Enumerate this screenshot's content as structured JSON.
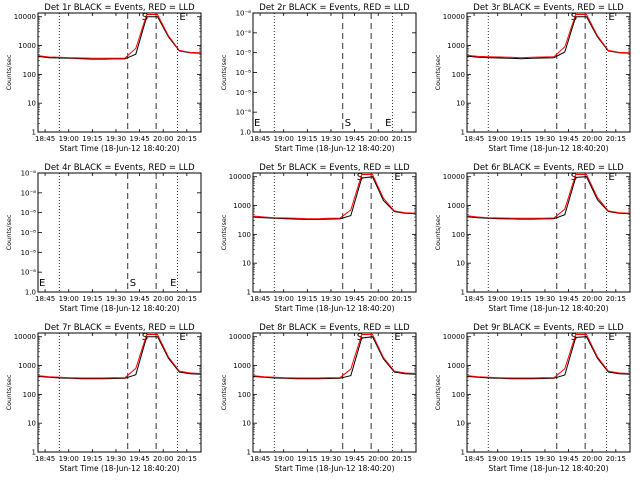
{
  "chart_data": [
    {
      "type": "line",
      "title": "Det 1r BLACK = Events, RED = LLD",
      "xlabel": "Start Time (18-Jun-12 18:40:20)",
      "ylabel": "Counts/sec",
      "scale": "log",
      "y_ticks": [
        "1",
        "10",
        "100",
        "1000",
        "10000"
      ],
      "x_ticks": [
        "18:45",
        "19:00",
        "19:15",
        "19:30",
        "19:45",
        "20:00",
        "20:15"
      ],
      "markers": [
        "S",
        "E"
      ],
      "has_data": true,
      "series": [
        {
          "name": "BLACK = Events",
          "color": "#000000",
          "x": [
            0,
            0.5,
            1,
            1.5,
            2,
            2.5,
            3,
            3.5,
            4,
            4.5,
            5,
            5.5,
            6,
            6.5,
            7,
            7.5
          ],
          "y": [
            420,
            380,
            370,
            360,
            350,
            340,
            340,
            345,
            345,
            500,
            10000,
            10000,
            2000,
            650,
            560,
            540
          ]
        },
        {
          "name": "RED = LLD",
          "color": "#ff0000",
          "x": [
            0,
            0.5,
            1,
            1.5,
            2,
            2.5,
            3,
            3.5,
            4,
            4.5,
            5,
            5.5,
            6,
            6.5,
            7,
            7.5
          ],
          "y": [
            450,
            400,
            390,
            380,
            370,
            360,
            360,
            365,
            365,
            800,
            12000,
            12000,
            2200,
            680,
            580,
            560
          ]
        }
      ]
    },
    {
      "type": "line",
      "title": "Det 2r BLACK = Events, RED = LLD",
      "xlabel": "Start Time (18-Jun-12 18:40:20)",
      "ylabel": "Counts/sec",
      "scale": "exp",
      "y_ticks": [
        "1.0",
        "10⁻⁶",
        "10⁻⁸",
        "10⁻⁸",
        "10⁻⁸",
        "10⁻⁸",
        "10⁻⁸"
      ],
      "x_ticks": [
        "18:45",
        "19:00",
        "19:15",
        "19:30",
        "19:45",
        "20:00",
        "20:15"
      ],
      "markers": [
        "E",
        "S",
        "E"
      ],
      "has_data": false,
      "series": []
    },
    {
      "type": "line",
      "title": "Det 3r BLACK = Events, RED = LLD",
      "xlabel": "Start Time (18-Jun-12 18:40:20)",
      "ylabel": "Counts/sec",
      "scale": "log",
      "y_ticks": [
        "1",
        "10",
        "100",
        "1000",
        "10000"
      ],
      "x_ticks": [
        "18:45",
        "19:00",
        "19:15",
        "19:30",
        "19:45",
        "20:00",
        "20:15"
      ],
      "markers": [
        "S",
        "E"
      ],
      "has_data": true,
      "series": [
        {
          "name": "BLACK = Events",
          "color": "#000000",
          "x": [
            0,
            0.5,
            1,
            1.5,
            2,
            2.5,
            3,
            3.5,
            4,
            4.5,
            5,
            5.5,
            6,
            6.5,
            7,
            7.5
          ],
          "y": [
            430,
            390,
            380,
            370,
            360,
            350,
            360,
            370,
            380,
            600,
            10000,
            10000,
            2000,
            650,
            560,
            540
          ]
        },
        {
          "name": "RED = LLD",
          "color": "#ff0000",
          "x": [
            0,
            0.5,
            1,
            1.5,
            2,
            2.5,
            3,
            3.5,
            4,
            4.5,
            5,
            5.5,
            6,
            6.5,
            7,
            7.5
          ],
          "y": [
            460,
            420,
            410,
            400,
            390,
            380,
            390,
            400,
            410,
            900,
            12000,
            12000,
            2200,
            680,
            580,
            560
          ]
        }
      ]
    },
    {
      "type": "line",
      "title": "Det 4r BLACK = Events, RED = LLD",
      "xlabel": "Start Time (18-Jun-12 18:40:20)",
      "ylabel": "Counts/sec",
      "scale": "exp",
      "y_ticks": [
        "1.0",
        "10⁻⁶",
        "10⁻⁸",
        "10⁻⁸",
        "10⁻⁸",
        "10⁻⁸",
        "10⁻⁸"
      ],
      "x_ticks": [
        "18:45",
        "19:00",
        "19:15",
        "19:30",
        "19:45",
        "20:00",
        "20:15"
      ],
      "markers": [
        "E",
        "S",
        "E"
      ],
      "has_data": false,
      "series": []
    },
    {
      "type": "line",
      "title": "Det 5r BLACK = Events, RED = LLD",
      "xlabel": "Start Time (18-Jun-12 18:40:20)",
      "ylabel": "Counts/sec",
      "scale": "log",
      "y_ticks": [
        "1",
        "10",
        "100",
        "1000",
        "10000"
      ],
      "x_ticks": [
        "18:45",
        "19:00",
        "19:15",
        "19:30",
        "19:45",
        "20:00",
        "20:15"
      ],
      "markers": [
        "S",
        "E"
      ],
      "has_data": true,
      "series": [
        {
          "name": "BLACK = Events",
          "color": "#000000",
          "x": [
            0,
            0.5,
            1,
            1.5,
            2,
            2.5,
            3,
            3.5,
            4,
            4.5,
            5,
            5.5,
            6,
            6.5,
            7,
            7.5
          ],
          "y": [
            400,
            380,
            360,
            350,
            340,
            330,
            330,
            340,
            345,
            450,
            9000,
            10000,
            1500,
            620,
            540,
            520
          ]
        },
        {
          "name": "RED = LLD",
          "color": "#ff0000",
          "x": [
            0,
            0.5,
            1,
            1.5,
            2,
            2.5,
            3,
            3.5,
            4,
            4.5,
            5,
            5.5,
            6,
            6.5,
            7,
            7.5
          ],
          "y": [
            430,
            400,
            380,
            370,
            360,
            350,
            350,
            360,
            365,
            700,
            12000,
            12000,
            1800,
            650,
            560,
            540
          ]
        }
      ]
    },
    {
      "type": "line",
      "title": "Det 6r BLACK = Events, RED = LLD",
      "xlabel": "Start Time (18-Jun-12 18:40:20)",
      "ylabel": "Counts/sec",
      "scale": "log",
      "y_ticks": [
        "1",
        "10",
        "100",
        "1000",
        "10000"
      ],
      "x_ticks": [
        "18:45",
        "19:00",
        "19:15",
        "19:30",
        "19:45",
        "20:00",
        "20:15"
      ],
      "markers": [
        "S",
        "E"
      ],
      "has_data": true,
      "series": [
        {
          "name": "BLACK = Events",
          "color": "#000000",
          "x": [
            0,
            0.5,
            1,
            1.5,
            2,
            2.5,
            3,
            3.5,
            4,
            4.5,
            5,
            5.5,
            6,
            6.5,
            7,
            7.5
          ],
          "y": [
            410,
            380,
            360,
            350,
            345,
            340,
            340,
            345,
            350,
            480,
            9500,
            10000,
            1600,
            620,
            540,
            520
          ]
        },
        {
          "name": "RED = LLD",
          "color": "#ff0000",
          "x": [
            0,
            0.5,
            1,
            1.5,
            2,
            2.5,
            3,
            3.5,
            4,
            4.5,
            5,
            5.5,
            6,
            6.5,
            7,
            7.5
          ],
          "y": [
            440,
            400,
            380,
            370,
            365,
            360,
            360,
            365,
            370,
            750,
            12000,
            12000,
            1900,
            650,
            560,
            540
          ]
        }
      ]
    },
    {
      "type": "line",
      "title": "Det 7r BLACK = Events, RED = LLD",
      "xlabel": "Start Time (18-Jun-12 18:40:20)",
      "ylabel": "Counts/sec",
      "scale": "log",
      "y_ticks": [
        "1",
        "10",
        "100",
        "1000",
        "10000"
      ],
      "x_ticks": [
        "18:45",
        "19:00",
        "19:15",
        "19:30",
        "19:45",
        "20:00",
        "20:15"
      ],
      "markers": [
        "S",
        "E"
      ],
      "has_data": true,
      "series": [
        {
          "name": "BLACK = Events",
          "color": "#000000",
          "x": [
            0,
            0.5,
            1,
            1.5,
            2,
            2.5,
            3,
            3.5,
            4,
            4.5,
            5,
            5.5,
            6,
            6.5,
            7,
            7.5
          ],
          "y": [
            420,
            390,
            370,
            360,
            350,
            350,
            350,
            355,
            360,
            480,
            10000,
            10000,
            1800,
            600,
            520,
            500
          ]
        },
        {
          "name": "RED = LLD",
          "color": "#ff0000",
          "x": [
            0,
            0.5,
            1,
            1.5,
            2,
            2.5,
            3,
            3.5,
            4,
            4.5,
            5,
            5.5,
            6,
            6.5,
            7,
            7.5
          ],
          "y": [
            450,
            410,
            390,
            380,
            370,
            370,
            370,
            375,
            380,
            800,
            12000,
            12000,
            2000,
            640,
            550,
            530
          ]
        }
      ]
    },
    {
      "type": "line",
      "title": "Det 8r BLACK = Events, RED = LLD",
      "xlabel": "Start Time (18-Jun-12 18:40:20)",
      "ylabel": "Counts/sec",
      "scale": "log",
      "y_ticks": [
        "1",
        "10",
        "100",
        "1000",
        "10000"
      ],
      "x_ticks": [
        "18:45",
        "19:00",
        "19:15",
        "19:30",
        "19:45",
        "20:00",
        "20:15"
      ],
      "markers": [
        "S",
        "E"
      ],
      "has_data": true,
      "series": [
        {
          "name": "BLACK = Events",
          "color": "#000000",
          "x": [
            0,
            0.5,
            1,
            1.5,
            2,
            2.5,
            3,
            3.5,
            4,
            4.5,
            5,
            5.5,
            6,
            6.5,
            7,
            7.5
          ],
          "y": [
            420,
            390,
            370,
            360,
            350,
            350,
            350,
            355,
            360,
            450,
            9000,
            10000,
            1700,
            600,
            520,
            500
          ]
        },
        {
          "name": "RED = LLD",
          "color": "#ff0000",
          "x": [
            0,
            0.5,
            1,
            1.5,
            2,
            2.5,
            3,
            3.5,
            4,
            4.5,
            5,
            5.5,
            6,
            6.5,
            7,
            7.5
          ],
          "y": [
            450,
            410,
            390,
            380,
            370,
            370,
            370,
            375,
            380,
            750,
            12000,
            12000,
            1900,
            640,
            550,
            530
          ]
        }
      ]
    },
    {
      "type": "line",
      "title": "Det 9r BLACK = Events, RED = LLD",
      "xlabel": "Start Time (18-Jun-12 18:40:20)",
      "ylabel": "Counts/sec",
      "scale": "log",
      "y_ticks": [
        "1",
        "10",
        "100",
        "1000",
        "10000"
      ],
      "x_ticks": [
        "18:45",
        "19:00",
        "19:15",
        "19:30",
        "19:45",
        "20:00",
        "20:15"
      ],
      "markers": [
        "S",
        "E"
      ],
      "has_data": true,
      "series": [
        {
          "name": "BLACK = Events",
          "color": "#000000",
          "x": [
            0,
            0.5,
            1,
            1.5,
            2,
            2.5,
            3,
            3.5,
            4,
            4.5,
            5,
            5.5,
            6,
            6.5,
            7,
            7.5
          ],
          "y": [
            420,
            390,
            370,
            360,
            350,
            350,
            350,
            355,
            360,
            470,
            9500,
            10000,
            1800,
            600,
            520,
            500
          ]
        },
        {
          "name": "RED = LLD",
          "color": "#ff0000",
          "x": [
            0,
            0.5,
            1,
            1.5,
            2,
            2.5,
            3,
            3.5,
            4,
            4.5,
            5,
            5.5,
            6,
            6.5,
            7,
            7.5
          ],
          "y": [
            450,
            410,
            390,
            380,
            370,
            370,
            370,
            375,
            380,
            780,
            12000,
            12000,
            2000,
            640,
            550,
            530
          ]
        }
      ]
    }
  ]
}
